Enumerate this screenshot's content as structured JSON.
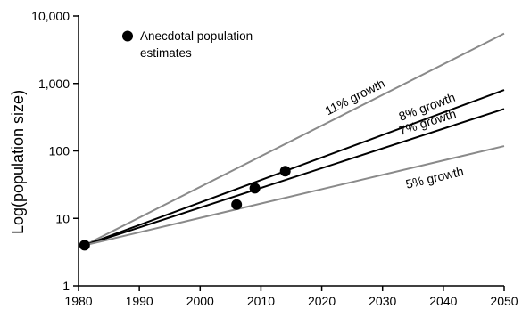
{
  "chart_data": {
    "type": "line",
    "ylabel": "Log(population size)",
    "xlabel": "",
    "xlim": [
      1980,
      2050
    ],
    "ylim": [
      1,
      10000
    ],
    "yscale": "log",
    "x_ticks": [
      1980,
      1990,
      2000,
      2010,
      2020,
      2030,
      2040,
      2050
    ],
    "y_ticks": [
      {
        "value": 1,
        "label": "1"
      },
      {
        "value": 10,
        "label": "10"
      },
      {
        "value": 100,
        "label": "100"
      },
      {
        "value": 1000,
        "label": "1,000"
      },
      {
        "value": 10000,
        "label": "10,000"
      }
    ],
    "grid": false,
    "legend_position": "top-left",
    "legend": {
      "marker_label": "Anecdotal population\nestimates"
    },
    "projections": [
      {
        "label": "11% growth",
        "rate": 0.11,
        "x": [
          1981,
          2050
        ],
        "y": [
          4,
          5500
        ],
        "color": "#8a8a8a"
      },
      {
        "label": "8% growth",
        "rate": 0.08,
        "x": [
          1981,
          2050
        ],
        "y": [
          4,
          800
        ],
        "color": "#000000"
      },
      {
        "label": "7% growth",
        "rate": 0.07,
        "x": [
          1981,
          2050
        ],
        "y": [
          4,
          420
        ],
        "color": "#000000"
      },
      {
        "label": "5% growth",
        "rate": 0.05,
        "x": [
          1981,
          2050
        ],
        "y": [
          4,
          118
        ],
        "color": "#8a8a8a"
      }
    ],
    "points": [
      {
        "x": 1981,
        "y": 4
      },
      {
        "x": 2006,
        "y": 16
      },
      {
        "x": 2009,
        "y": 28
      },
      {
        "x": 2014,
        "y": 50
      }
    ]
  }
}
